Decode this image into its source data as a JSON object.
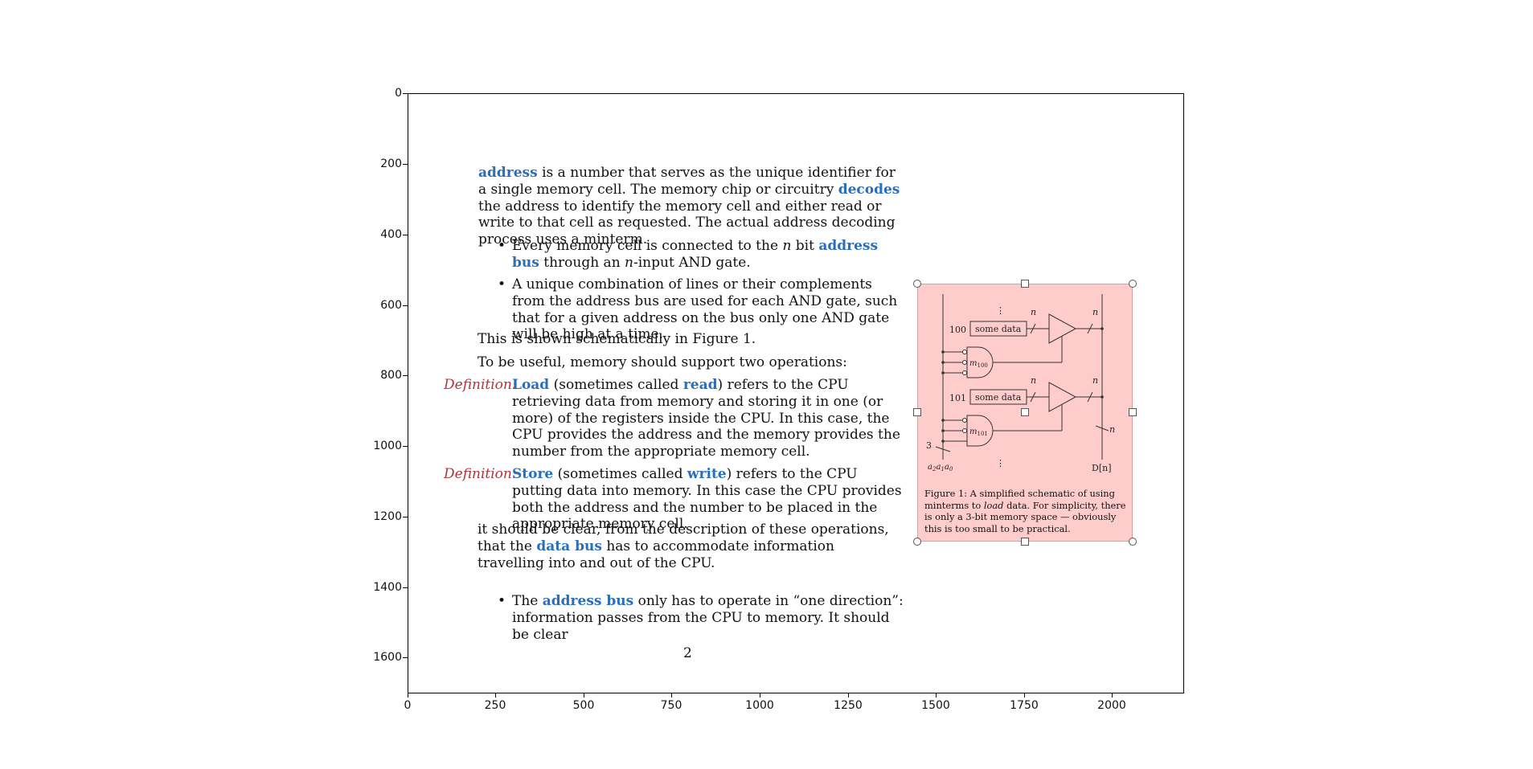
{
  "axes": {
    "y_ticks": [
      "0",
      "200",
      "400",
      "600",
      "800",
      "1000",
      "1200",
      "1400",
      "1600"
    ],
    "x_ticks": [
      "0",
      "250",
      "500",
      "750",
      "1000",
      "1250",
      "1500",
      "1750",
      "2000"
    ]
  },
  "document": {
    "p1": {
      "t1": "address",
      "t2": " is a number that serves as the unique identifier for a single memory cell. The memory chip or circuitry ",
      "t3": "decodes",
      "t4": " the address to identify the memory cell and either read or write to that cell as requested. The actual address decoding process uses a minterm."
    },
    "b1": {
      "t1": "Every memory cell is connected to the ",
      "v1": "n",
      "t2": " bit ",
      "t3": "address bus",
      "t4": " through an ",
      "v2": "n",
      "t5": "-input AND gate."
    },
    "b2": {
      "t1": "A unique combination of lines or their complements from the address bus are used for each AND gate, such that for a given address on the bus only one AND gate will be high at a time."
    },
    "p2": "This is shown schematically in Figure 1.",
    "p3": "To be useful, memory should support two operations:",
    "def1": {
      "label": "Definition:",
      "t1": "Load",
      "t2": " (sometimes called ",
      "t3": "read",
      "t4": ") refers to the CPU retrieving data from memory and storing it in one (or more) of the registers inside the CPU. In this case, the CPU provides the address and the memory provides the number from the appropriate memory cell."
    },
    "def2": {
      "label": "Definition:",
      "t1": "Store",
      "t2": " (sometimes called ",
      "t3": "write",
      "t4": ") refers to the CPU putting data into memory. In this case the CPU provides both the address and the number to be placed in the appropriate memory cell."
    },
    "p4": {
      "t1": "it should be clear, from the description of these operations, that the ",
      "t2": "data bus",
      "t3": " has to accommodate information travelling into and out of the CPU."
    },
    "b3": {
      "t1": "The ",
      "t2": "address bus",
      "t3": " only has to operate in “one direction”: information passes from the CPU to memory. It should be clear"
    },
    "page_number": "2"
  },
  "figure": {
    "labels": {
      "addr100": "100",
      "addr101": "101",
      "data1": "some data",
      "data2": "some data",
      "n": "n",
      "m100": "m",
      "m100_sub": "100",
      "m101": "m",
      "m101_sub": "101",
      "three": "3",
      "a_bits": "a",
      "sub2": "2",
      "sub1": "1",
      "sub0": "0",
      "dn": "D[n]",
      "dots": "⋮"
    },
    "caption": {
      "t1": "Figure 1: A simplified schematic of using minterms to ",
      "t2": "load",
      "t3": " data. For simplicity, there is only a 3-bit memory space — obviously this is too small to be practical."
    }
  },
  "colors": {
    "term": "#2a6ebb",
    "definition": "#b5333a",
    "selection": "#ffcccc"
  }
}
